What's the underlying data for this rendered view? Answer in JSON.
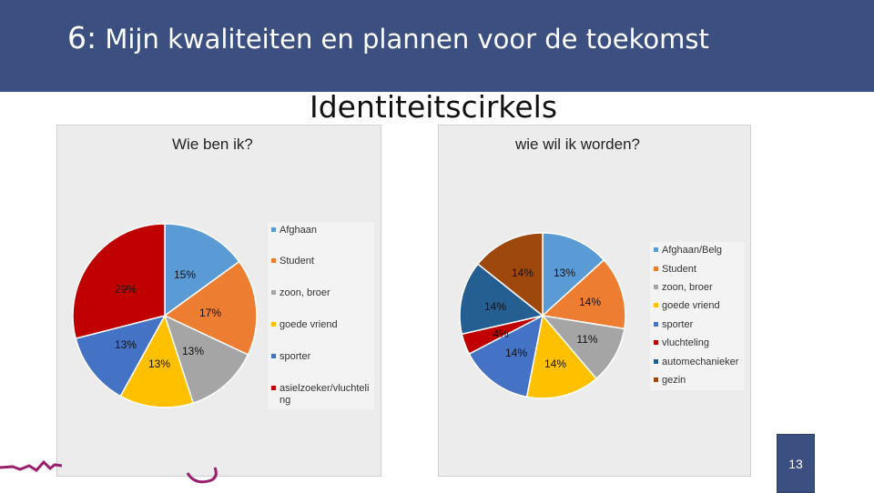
{
  "header": {
    "number": "6:",
    "title": "Mijn kwaliteiten en plannen voor de toekomst",
    "bg_color": "#3b4f80"
  },
  "subtitle": "Identiteitscirkels",
  "page_number": "13",
  "chart_data": [
    {
      "type": "pie",
      "title": "Wie ben ik?",
      "categories": [
        "Afghaan",
        "Student",
        "zoon, broer",
        "goede vriend",
        "sporter",
        "asielzoeker/vluchteling"
      ],
      "legend_labels": [
        "Afghaan",
        "Student",
        "zoon, broer",
        "goede vriend",
        "sporter",
        "asielzoeker/vluchteli",
        "ng"
      ],
      "values": [
        15,
        17,
        13,
        13,
        13,
        29
      ],
      "value_labels": [
        "15%",
        "17%",
        "13%",
        "13%",
        "13%",
        "29%"
      ],
      "colors": [
        "#5b9bd5",
        "#ed7d31",
        "#a5a5a5",
        "#ffc000",
        "#4472c4",
        "#c00000"
      ],
      "legend": "right"
    },
    {
      "type": "pie",
      "title": "wie wil ik worden?",
      "categories": [
        "Afghaan/Belg",
        "Student",
        "zoon, broer",
        "goede vriend",
        "sporter",
        "vluchteling",
        "automechanieker",
        "gezin"
      ],
      "values": [
        13,
        14,
        11,
        14,
        14,
        4,
        14,
        14
      ],
      "value_labels": [
        "13%",
        "14%",
        "11%",
        "14%",
        "14%",
        "4%",
        "14%",
        "14%"
      ],
      "colors": [
        "#5b9bd5",
        "#ed7d31",
        "#a5a5a5",
        "#ffc000",
        "#4472c4",
        "#c00000",
        "#255e91",
        "#9e480e"
      ],
      "legend": "right"
    }
  ]
}
